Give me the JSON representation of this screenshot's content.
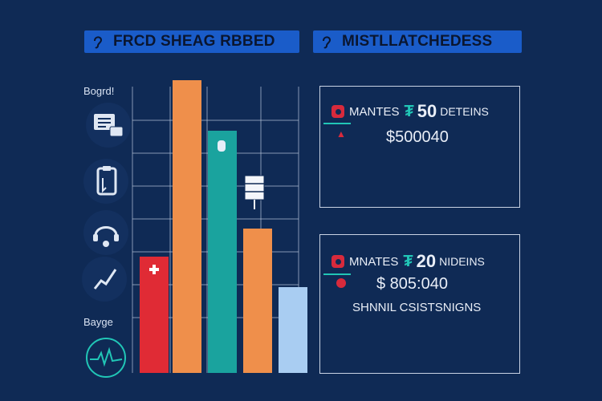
{
  "header": {
    "left_title": "FRCD SHEAG RBBED",
    "right_title": "MISTLLATCHEDESS"
  },
  "sidebar": {
    "top_label": "Bogrd!",
    "bottom_label": "Bayge",
    "icons": [
      "chat-icon",
      "clipboard-icon",
      "headset-icon",
      "trend-icon",
      "heartbeat-icon"
    ]
  },
  "cards": [
    {
      "label": "MANTES",
      "glyph": "₮",
      "number": "50",
      "unit": "DETEINS",
      "amount": "$500040"
    },
    {
      "label": "MNATES",
      "glyph": "₮",
      "number": "20",
      "unit": "NIDEINS",
      "amount": "$ 805:040",
      "caption": "SHNNIL CSISTSNIGNS"
    }
  ],
  "colors": {
    "background": "#0f2a55",
    "grid": "#b9c6dc",
    "header": "#1a5cc9",
    "accent_teal": "#21c6b6",
    "accent_red": "#d72a3c"
  },
  "chart_data": {
    "type": "bar",
    "categories": [
      "",
      "",
      "",
      "",
      ""
    ],
    "series": [
      {
        "values": [
          145,
          365,
          302,
          180,
          107
        ]
      }
    ],
    "bar_colors": [
      "#e02b35",
      "#ef8f4b",
      "#1aa39e",
      "#ef8f4b",
      "#a9cdf2"
    ],
    "ylim": [
      0,
      365
    ],
    "grid": true
  }
}
